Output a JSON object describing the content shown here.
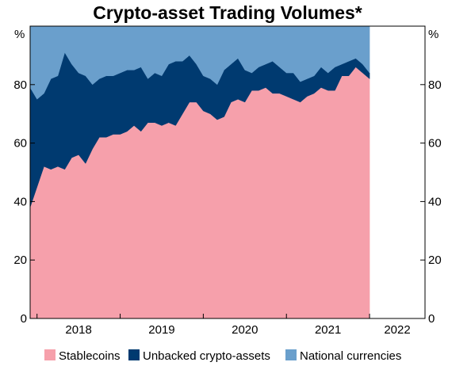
{
  "chart_data": {
    "type": "area",
    "title": "Crypto-asset Trading Volumes*",
    "y_unit_left": "%",
    "y_unit_right": "%",
    "ylim": [
      0,
      100
    ],
    "yticks": [
      0,
      20,
      40,
      60,
      80
    ],
    "year_ticks": [
      2018,
      2019,
      2020,
      2021,
      2022
    ],
    "year_labels": [
      "2018",
      "2019",
      "2020",
      "2021",
      "2022"
    ],
    "xlim": [
      2017.917,
      2022.667
    ],
    "x_start": 2017.917,
    "x_step": 0.08333,
    "stacked": true,
    "grid": false,
    "legend_position": "bottom",
    "colors": {
      "stablecoins": "#f6a0ab",
      "unbacked": "#003a70",
      "national": "#6a9fcc"
    },
    "series": [
      {
        "name": "Stablecoins",
        "color": "#f6a0ab",
        "values": [
          38,
          45,
          52,
          51,
          52,
          51,
          55,
          56,
          53,
          58,
          62,
          62,
          63,
          63,
          64,
          66,
          64,
          67,
          67,
          66,
          67,
          66,
          70,
          74,
          74,
          71,
          70,
          68,
          69,
          74,
          75,
          74,
          78,
          78,
          79,
          77,
          77,
          76,
          75,
          74,
          76,
          77,
          79,
          78,
          78,
          83,
          83,
          86,
          84,
          82
        ]
      },
      {
        "name": "Unbacked crypto-assets",
        "color": "#003a70",
        "values": [
          41,
          30,
          25,
          31,
          31,
          40,
          32,
          28,
          30,
          22,
          20,
          21,
          20,
          21,
          21,
          19,
          22,
          15,
          17,
          17,
          20,
          22,
          18,
          16,
          13,
          12,
          12,
          12,
          16,
          13,
          14,
          11,
          6,
          8,
          8,
          11,
          9,
          8,
          9,
          7,
          6,
          6,
          7,
          6,
          8,
          4,
          5,
          3,
          3,
          2
        ]
      },
      {
        "name": "National currencies",
        "color": "#6a9fcc",
        "values": [
          21,
          25,
          23,
          18,
          17,
          9,
          13,
          16,
          17,
          20,
          18,
          17,
          17,
          16,
          15,
          15,
          14,
          18,
          16,
          17,
          13,
          12,
          12,
          10,
          13,
          17,
          18,
          20,
          15,
          13,
          11,
          15,
          16,
          14,
          13,
          12,
          14,
          16,
          16,
          19,
          18,
          17,
          14,
          16,
          14,
          13,
          12,
          11,
          13,
          16
        ]
      }
    ]
  }
}
